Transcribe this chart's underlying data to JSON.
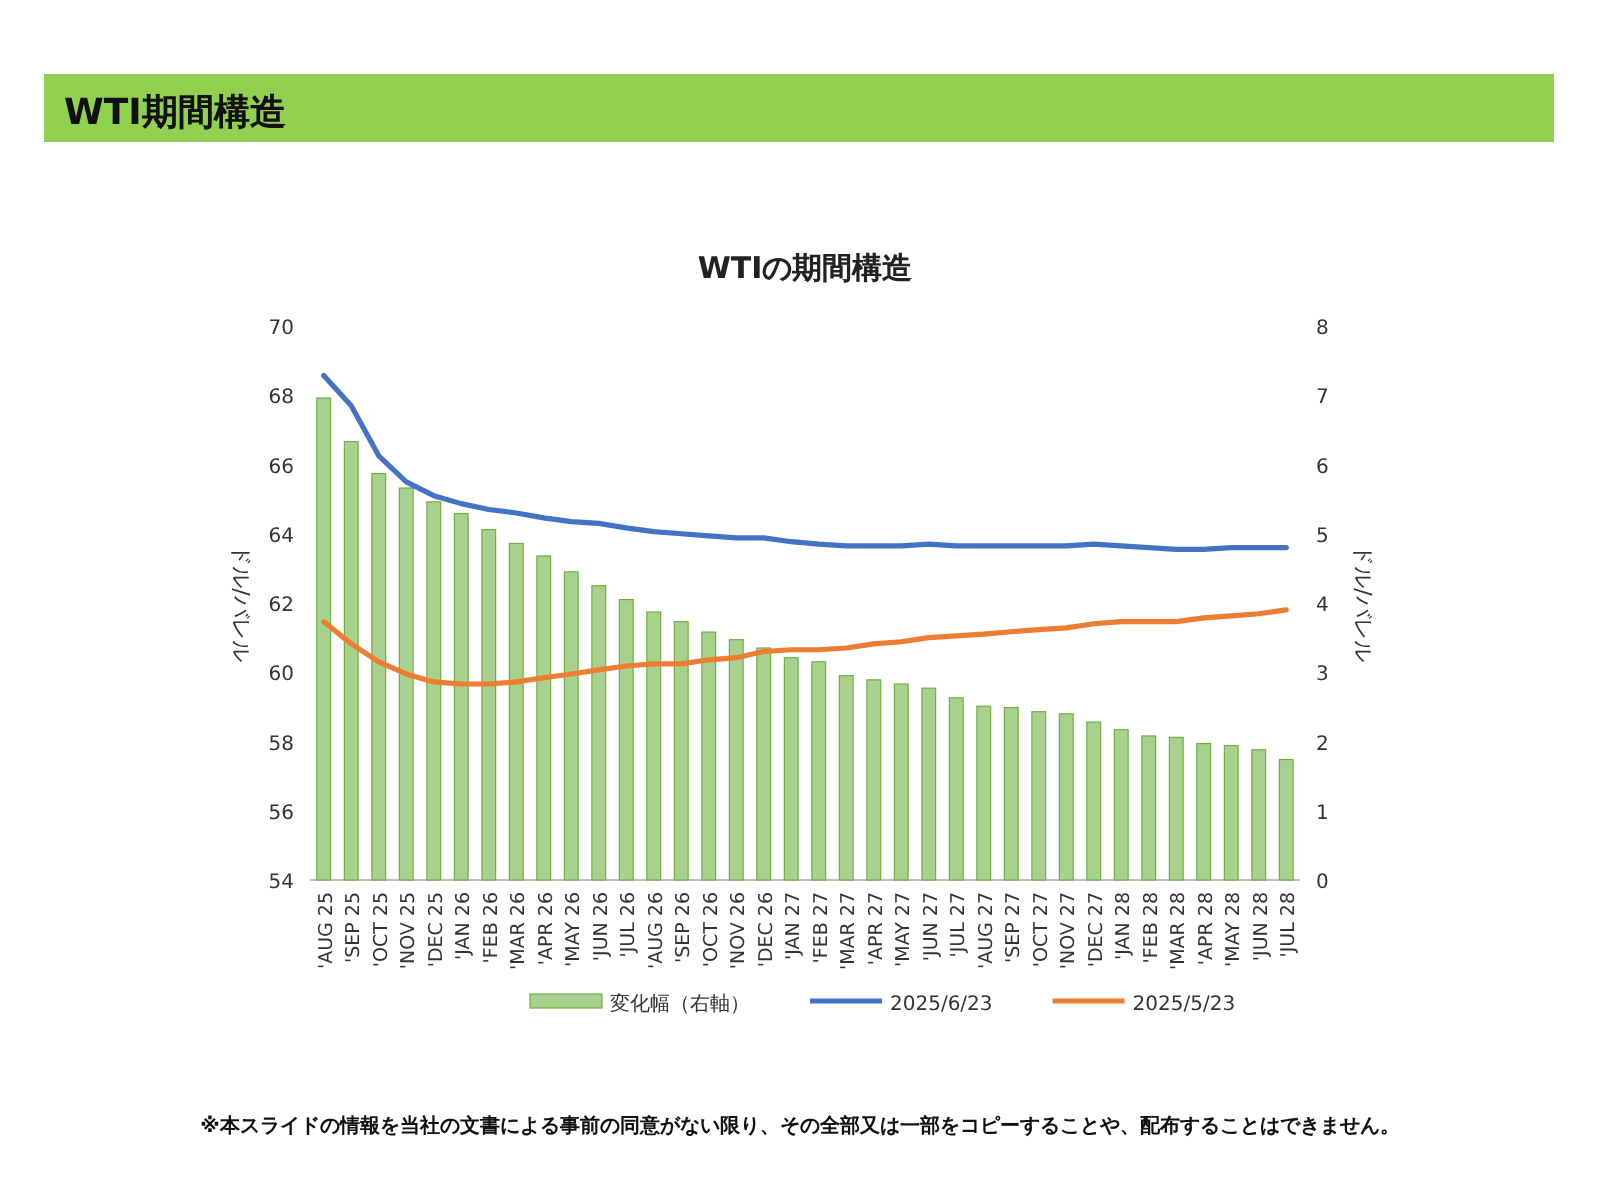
{
  "chart_data": {
    "type": "bar",
    "title": "WTI期間構造",
    "subtitle": "WTIの期間構造",
    "ylabel": "ドル/バレル",
    "y2label": "ドル/バレル",
    "categories": [
      "'AUG 25",
      "'SEP 25",
      "'OCT 25",
      "'NOV 25",
      "'DEC 25",
      "'JAN 26",
      "'FEB 26",
      "'MAR 26",
      "'APR 26",
      "'MAY 26",
      "'JUN 26",
      "'JUL 26",
      "'AUG 26",
      "'SEP 26",
      "'OCT 26",
      "'NOV 26",
      "'DEC 26",
      "'JAN 27",
      "'FEB 27",
      "'MAR 27",
      "'APR 27",
      "'MAY 27",
      "'JUN 27",
      "'JUL 27",
      "'AUG 27",
      "'SEP 27",
      "'OCT 27",
      "'NOV 27",
      "'DEC 27",
      "'JAN 28",
      "'FEB 28",
      "'MAR 28",
      "'APR 28",
      "'MAY 28",
      "'JUN 28",
      "'JUL 28"
    ],
    "series": [
      {
        "name": "変化幅（右軸）",
        "axis": "y2",
        "color": "#a9d18e",
        "values": [
          6.96,
          6.33,
          5.87,
          5.66,
          5.46,
          5.29,
          5.06,
          4.86,
          4.68,
          4.45,
          4.25,
          4.05,
          3.87,
          3.73,
          3.58,
          3.47,
          3.35,
          3.21,
          3.15,
          2.95,
          2.89,
          2.83,
          2.77,
          2.63,
          2.51,
          2.49,
          2.43,
          2.4,
          2.28,
          2.17,
          2.08,
          2.06,
          1.97,
          1.94,
          1.88,
          1.74
        ]
      },
      {
        "name": "2025/6/23",
        "type": "line",
        "color": "#4472c4",
        "values": [
          68.57,
          67.7,
          66.25,
          65.5,
          65.1,
          64.87,
          64.7,
          64.6,
          64.46,
          64.35,
          64.3,
          64.17,
          64.06,
          64.0,
          63.94,
          63.88,
          63.88,
          63.77,
          63.7,
          63.65,
          63.65,
          63.65,
          63.7,
          63.65,
          63.65,
          63.65,
          63.65,
          63.65,
          63.7,
          63.65,
          63.6,
          63.55,
          63.55,
          63.6,
          63.6,
          63.6
        ]
      },
      {
        "name": "2025/5/23",
        "type": "line",
        "color": "#ed7d31",
        "values": [
          61.46,
          60.82,
          60.3,
          59.95,
          59.72,
          59.66,
          59.66,
          59.72,
          59.84,
          59.95,
          60.07,
          60.18,
          60.24,
          60.24,
          60.36,
          60.42,
          60.6,
          60.65,
          60.65,
          60.7,
          60.82,
          60.88,
          61.0,
          61.05,
          61.1,
          61.17,
          61.23,
          61.28,
          61.4,
          61.46,
          61.46,
          61.46,
          61.57,
          61.63,
          61.69,
          61.8
        ]
      }
    ],
    "ylim": [
      54,
      70
    ],
    "yticks": [
      54,
      56,
      58,
      60,
      62,
      64,
      66,
      68,
      70
    ],
    "y2lim": [
      0,
      8
    ],
    "y2ticks": [
      0,
      1,
      2,
      3,
      4,
      5,
      6,
      7,
      8
    ],
    "legend": "bottom",
    "annotations": [
      "※本スライドの情報を当社の文書による事前の同意がない限り、その全部又は一部をコピーすることや、配布することはできません。"
    ]
  }
}
